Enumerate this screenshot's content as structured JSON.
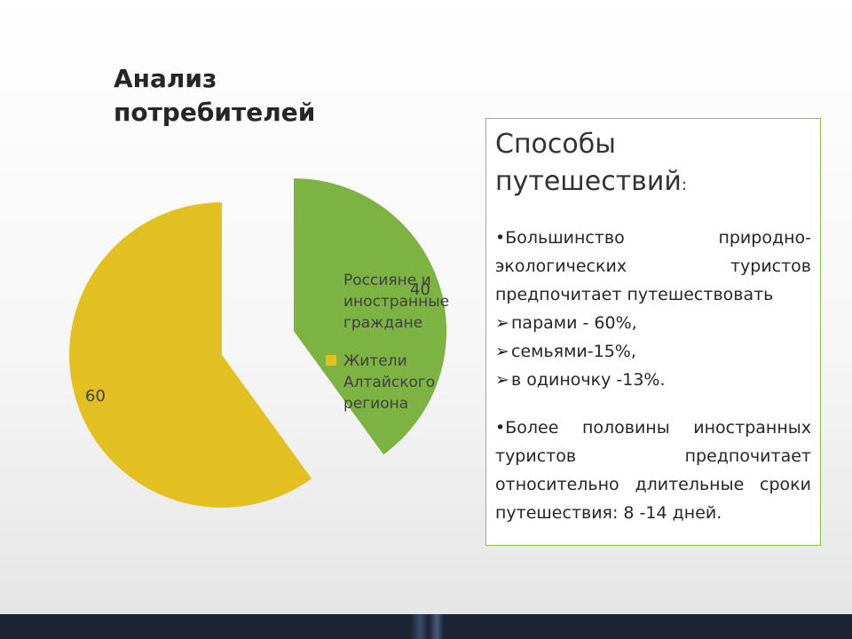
{
  "slide": {
    "title": "Анализ\nпотребителей"
  },
  "chart_data": {
    "type": "pie",
    "exploded": true,
    "slices": [
      {
        "label": "Россияне и иностранные граждане",
        "value": 40,
        "color": "#7cb342"
      },
      {
        "label": "Жители Алтайского региона",
        "value": 60,
        "color": "#e2c021"
      }
    ],
    "legend": [
      "Россияне и иностранные граждане",
      "Жители Алтайского региона"
    ],
    "legend_position": "right",
    "data_labels": [
      "40",
      "60"
    ]
  },
  "info": {
    "heading": "Способы путешествий",
    "heading_suffix": ":",
    "para1": "•Большинство природно-экологических туристов предпочитает путешествовать",
    "items": [
      "парами - 60%,",
      "семьями-15%,",
      "в одиночку -13%."
    ],
    "arrow_glyph": "➢",
    "para2": "•Более половины иностранных туристов предпочитает относительно длительные сроки путешествия: 8 -14 дней."
  },
  "colors": {
    "footer": "#1c2333",
    "box_border": "#8bc34a",
    "slice_green": "#7cb342",
    "slice_yellow": "#e2c021"
  }
}
